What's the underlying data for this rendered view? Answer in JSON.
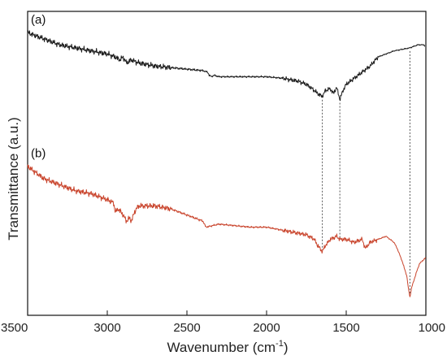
{
  "chart_data": {
    "type": "line",
    "title": "",
    "xlabel": "Wavenumber (cm",
    "xlabel_sup": "-1",
    "xlabel_close": ")",
    "ylabel": "Transmittance (a.u.)",
    "xlim": [
      3500,
      1000
    ],
    "ylim": [
      0,
      1
    ],
    "x_ticks": [
      3500,
      3000,
      2500,
      2000,
      1500,
      1000
    ],
    "x_tick_labels": [
      "3500",
      "3000",
      "2500",
      "2000",
      "1500",
      "1000"
    ],
    "grid": false,
    "reference_lines_x": [
      1650,
      1540,
      1100
    ],
    "series": [
      {
        "name": "(a)",
        "color": "#1a1a1a",
        "x": [
          3500,
          3400,
          3300,
          3200,
          3100,
          3000,
          2950,
          2920,
          2900,
          2880,
          2850,
          2800,
          2700,
          2600,
          2500,
          2400,
          2370,
          2360,
          2345,
          2330,
          2300,
          2200,
          2100,
          2000,
          1900,
          1800,
          1750,
          1700,
          1680,
          1650,
          1630,
          1600,
          1580,
          1560,
          1540,
          1520,
          1500,
          1450,
          1400,
          1350,
          1300,
          1250,
          1200,
          1150,
          1100,
          1050,
          1020,
          1010,
          1005
        ],
        "y": [
          0.93,
          0.91,
          0.89,
          0.88,
          0.87,
          0.86,
          0.85,
          0.84,
          0.85,
          0.83,
          0.84,
          0.83,
          0.82,
          0.815,
          0.81,
          0.805,
          0.8,
          0.79,
          0.785,
          0.79,
          0.785,
          0.785,
          0.785,
          0.785,
          0.78,
          0.77,
          0.76,
          0.74,
          0.73,
          0.72,
          0.74,
          0.745,
          0.73,
          0.75,
          0.71,
          0.74,
          0.76,
          0.78,
          0.8,
          0.82,
          0.85,
          0.86,
          0.87,
          0.875,
          0.88,
          0.89,
          0.89,
          0.89,
          0.88
        ]
      },
      {
        "name": "(b)",
        "color": "#c9442c",
        "x": [
          3500,
          3450,
          3400,
          3300,
          3200,
          3100,
          3050,
          3000,
          2960,
          2950,
          2930,
          2900,
          2880,
          2860,
          2850,
          2820,
          2800,
          2700,
          2600,
          2500,
          2400,
          2380,
          2300,
          2200,
          2100,
          2000,
          1900,
          1800,
          1750,
          1700,
          1680,
          1650,
          1630,
          1600,
          1560,
          1540,
          1500,
          1450,
          1400,
          1380,
          1350,
          1300,
          1250,
          1200,
          1180,
          1150,
          1120,
          1110,
          1100,
          1090,
          1060,
          1040,
          1020,
          1000
        ],
        "y": [
          0.49,
          0.47,
          0.45,
          0.43,
          0.41,
          0.4,
          0.39,
          0.38,
          0.37,
          0.34,
          0.35,
          0.33,
          0.31,
          0.32,
          0.31,
          0.35,
          0.36,
          0.36,
          0.35,
          0.33,
          0.31,
          0.29,
          0.3,
          0.295,
          0.29,
          0.29,
          0.28,
          0.27,
          0.265,
          0.25,
          0.23,
          0.21,
          0.23,
          0.25,
          0.26,
          0.25,
          0.25,
          0.24,
          0.25,
          0.22,
          0.24,
          0.25,
          0.26,
          0.24,
          0.22,
          0.18,
          0.13,
          0.09,
          0.06,
          0.09,
          0.14,
          0.17,
          0.18,
          0.19
        ]
      }
    ]
  }
}
